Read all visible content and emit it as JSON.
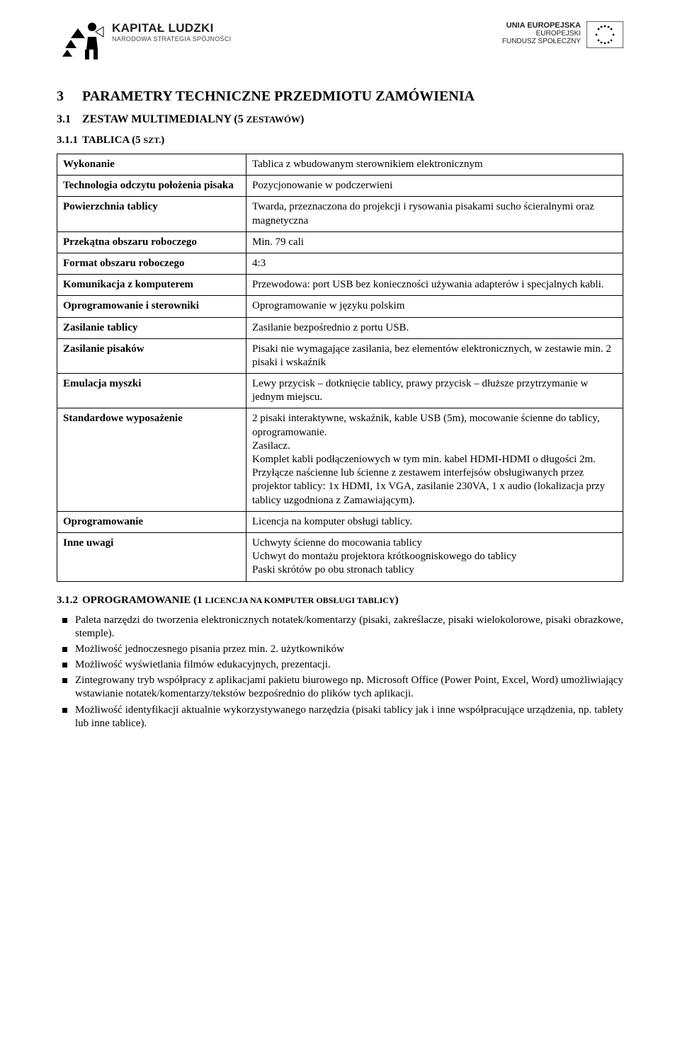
{
  "header": {
    "left": {
      "title": "KAPITAŁ LUDZKI",
      "subtitle": "NARODOWA STRATEGIA SPÓJNOŚCI"
    },
    "right": {
      "line1": "UNIA EUROPEJSKA",
      "line2": "EUROPEJSKI",
      "line3": "FUNDUSZ SPOŁECZNY"
    }
  },
  "section3": {
    "num": "3",
    "title": "PARAMETRY TECHNICZNE PRZEDMIOTU ZAMÓWIENIA"
  },
  "section31": {
    "num": "3.1",
    "title_main": "ZESTAW MULTIMEDIALNY (5 ",
    "title_small": "ZESTAWÓW",
    "title_end": ")"
  },
  "section311": {
    "num": "3.1.1",
    "title_main": "TABLICA (5 ",
    "title_small": "SZT.",
    "title_end": ")"
  },
  "table": {
    "rows": [
      {
        "k": "Wykonanie",
        "v": "Tablica z wbudowanym sterownikiem elektronicznym"
      },
      {
        "k": "Technologia odczytu położenia pisaka",
        "v": "Pozycjonowanie w podczerwieni"
      },
      {
        "k": "Powierzchnia tablicy",
        "v": "Twarda, przeznaczona do projekcji i rysowania pisakami sucho ścieralnymi oraz magnetyczna"
      },
      {
        "k": "Przekątna obszaru roboczego",
        "v": "Min. 79 cali"
      },
      {
        "k": "Format obszaru roboczego",
        "v": "4:3"
      },
      {
        "k": "Komunikacja z komputerem",
        "v": "Przewodowa: port USB bez konieczności używania adapterów i specjalnych kabli."
      },
      {
        "k": "Oprogramowanie i sterowniki",
        "v": "Oprogramowanie w języku polskim"
      },
      {
        "k": "Zasilanie tablicy",
        "v": "Zasilanie bezpośrednio z portu USB."
      },
      {
        "k": "Zasilanie pisaków",
        "v": "Pisaki nie wymagające zasilania, bez elementów elektronicznych, w zestawie min. 2 pisaki i wskaźnik"
      },
      {
        "k": "Emulacja myszki",
        "v": "Lewy przycisk – dotknięcie tablicy, prawy przycisk – dłuższe przytrzymanie w jednym miejscu."
      },
      {
        "k": "Standardowe wyposażenie",
        "v": "2 pisaki interaktywne, wskaźnik, kable USB (5m), mocowanie ścienne do tablicy, oprogramowanie.\nZasilacz.\nKomplet kabli podłączeniowych w tym min. kabel HDMI-HDMI o długości 2m.\nPrzyłącze naścienne lub ścienne z zestawem interfejsów obsługiwanych przez projektor tablicy: 1x HDMI, 1x VGA, zasilanie 230VA, 1 x audio (lokalizacja przy tablicy uzgodniona z Zamawiającym)."
      },
      {
        "k": "Oprogramowanie",
        "v": "Licencja na komputer obsługi tablicy."
      },
      {
        "k": "Inne uwagi",
        "v": "Uchwyty ścienne do mocowania tablicy\nUchwyt do montażu projektora krótkoogniskowego do tablicy\nPaski skrótów po obu stronach tablicy"
      }
    ]
  },
  "section312": {
    "num": "3.1.2",
    "title_main": "OPROGRAMOWANIE (1 ",
    "title_small": "LICENCJA NA KOMPUTER OBSŁUGI TABLICY",
    "title_end": ")"
  },
  "bullets": [
    "Paleta narzędzi do tworzenia elektronicznych notatek/komentarzy (pisaki, zakreślacze, pisaki wielokolorowe, pisaki obrazkowe, stemple).",
    "Możliwość jednoczesnego pisania przez min. 2. użytkowników",
    "Możliwość wyświetlania filmów edukacyjnych, prezentacji.",
    "Zintegrowany tryb współpracy z aplikacjami pakietu biurowego np. Microsoft Office (Power Point, Excel, Word) umożliwiający wstawianie notatek/komentarzy/tekstów bezpośrednio do plików tych aplikacji.",
    "Możliwość identyfikacji aktualnie wykorzystywanego narzędzia (pisaki tablicy jak i inne współpracujące urządzenia, np. tablety lub inne tablice)."
  ]
}
